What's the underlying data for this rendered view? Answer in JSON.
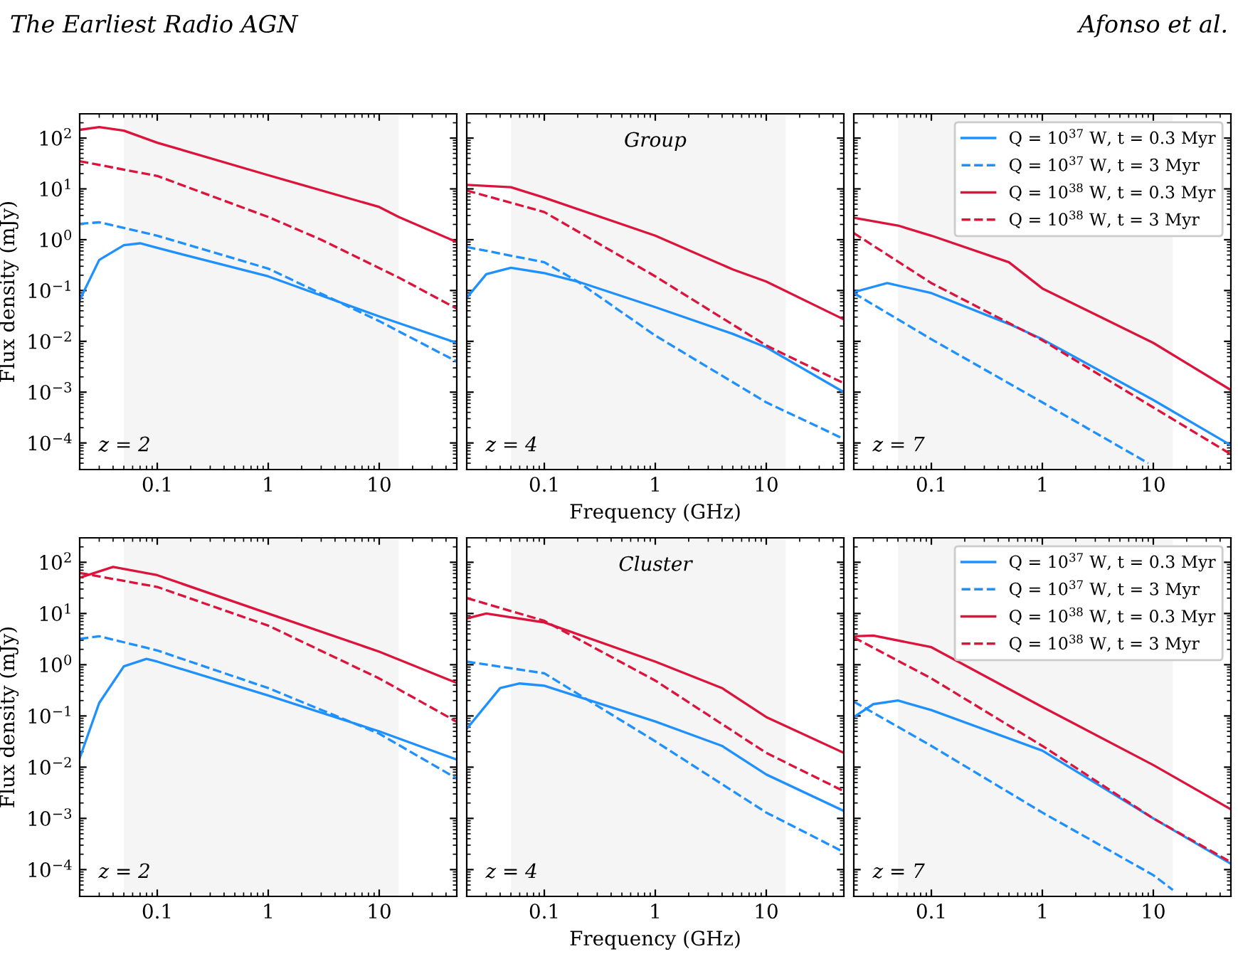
{
  "chart_data": [
    {
      "type": "line",
      "ylabel": "Flux density (mJy)",
      "annotations": [
        "z = 2",
        "The Earliest Radio AGN",
        "Afonso et al."
      ],
      "log": "xy",
      "grid": false,
      "tick_labels": true,
      "xlim": [
        0.02,
        50
      ],
      "ylim": [
        3e-05,
        300
      ],
      "xticks": [
        0.1,
        1,
        10
      ],
      "yticks": [
        {
          "value": 0.0001,
          "label": "10$^{−4}$"
        },
        {
          "value": 0.001,
          "label": "10$^{−3}$"
        },
        {
          "value": 0.01,
          "label": "10$^{−2}$"
        },
        {
          "value": 0.1,
          "label": "10$^{−1}$"
        },
        {
          "value": 1,
          "label": "10$^{0}$"
        },
        {
          "value": 10,
          "label": "10$^{1}$"
        },
        {
          "value": 100,
          "label": "10$^{2}$"
        }
      ],
      "bands": [
        {
          "axis": "x",
          "from": 0.05,
          "to": 15,
          "color": "#f5f5f5"
        }
      ],
      "series": [
        {
          "color": "#1e90ff",
          "line_style": "solid",
          "x": [
            0.02,
            0.03,
            0.05,
            0.07,
            0.1,
            1,
            10,
            50
          ],
          "values": [
            0.065,
            0.4,
            0.78,
            0.85,
            0.69,
            0.19,
            0.031,
            0.0093
          ]
        },
        {
          "color": "#1e90ff",
          "line_style": "dashed",
          "x": [
            0.02,
            0.03,
            0.1,
            1,
            10,
            50
          ],
          "values": [
            2.05,
            2.2,
            1.2,
            0.27,
            0.025,
            0.004
          ]
        },
        {
          "color": "#dc143c",
          "line_style": "solid",
          "x": [
            0.02,
            0.03,
            0.05,
            0.1,
            1,
            10,
            15,
            50
          ],
          "values": [
            145,
            165,
            140,
            81,
            18.6,
            4.4,
            2.8,
            0.9
          ]
        },
        {
          "color": "#dc143c",
          "line_style": "dashed",
          "x": [
            0.02,
            0.1,
            1,
            3,
            15,
            50
          ],
          "values": [
            35,
            18,
            2.8,
            1.0,
            0.18,
            0.044
          ]
        }
      ]
    },
    {
      "type": "line",
      "title": "Group",
      "xlabel": "Frequency (GHz)",
      "annotations": [
        "z = 4"
      ],
      "log": "xy",
      "grid": false,
      "tick_labels": "x",
      "xlim": [
        0.02,
        50
      ],
      "ylim": [
        3e-05,
        300
      ],
      "xticks": [
        0.1,
        1,
        10
      ],
      "yticks": [
        {
          "value": 0.0001,
          "label": null
        },
        {
          "value": 0.001,
          "label": null
        },
        {
          "value": 0.01,
          "label": null
        },
        {
          "value": 0.1,
          "label": null
        },
        {
          "value": 1,
          "label": null
        },
        {
          "value": 10,
          "label": null
        },
        {
          "value": 100,
          "label": null
        }
      ],
      "bands": [
        {
          "axis": "x",
          "from": 0.05,
          "to": 15,
          "color": "#f5f5f5"
        }
      ],
      "series": [
        {
          "color": "#1e90ff",
          "line_style": "solid",
          "x": [
            0.02,
            0.03,
            0.05,
            0.1,
            0.2,
            1,
            5,
            10,
            50
          ],
          "values": [
            0.072,
            0.21,
            0.28,
            0.22,
            0.15,
            0.047,
            0.014,
            0.0076,
            0.001
          ]
        },
        {
          "color": "#1e90ff",
          "line_style": "dashed",
          "x": [
            0.02,
            0.1,
            0.2,
            1,
            10,
            50
          ],
          "values": [
            0.72,
            0.36,
            0.15,
            0.013,
            0.00063,
            0.00012
          ]
        },
        {
          "color": "#dc143c",
          "line_style": "solid",
          "x": [
            0.02,
            0.05,
            0.1,
            1,
            5,
            10,
            50
          ],
          "values": [
            12,
            10.8,
            6.7,
            1.2,
            0.26,
            0.15,
            0.027
          ]
        },
        {
          "color": "#dc143c",
          "line_style": "dashed",
          "x": [
            0.02,
            0.1,
            1,
            10,
            50
          ],
          "values": [
            9.3,
            3.5,
            0.19,
            0.0083,
            0.0015
          ]
        }
      ]
    },
    {
      "type": "line",
      "annotations": [
        "z = 7"
      ],
      "log": "xy",
      "grid": false,
      "tick_labels": "x",
      "legend": "top right",
      "xlim": [
        0.02,
        50
      ],
      "ylim": [
        3e-05,
        300
      ],
      "xticks": [
        0.1,
        1,
        10
      ],
      "yticks": [
        {
          "value": 0.0001,
          "label": null
        },
        {
          "value": 0.001,
          "label": null
        },
        {
          "value": 0.01,
          "label": null
        },
        {
          "value": 0.1,
          "label": null
        },
        {
          "value": 1,
          "label": null
        },
        {
          "value": 10,
          "label": null
        },
        {
          "value": 100,
          "label": null
        }
      ],
      "bands": [
        {
          "axis": "x",
          "from": 0.05,
          "to": 15,
          "color": "#f5f5f5"
        }
      ],
      "series": [
        {
          "name": "Q = 10$^{37}$ W, t = 0.3 Myr",
          "color": "#1e90ff",
          "line_style": "solid",
          "x": [
            0.02,
            0.04,
            0.1,
            0.5,
            1,
            10,
            50
          ],
          "values": [
            0.093,
            0.14,
            0.089,
            0.022,
            0.011,
            0.0007,
            9e-05
          ]
        },
        {
          "name": "Q = 10$^{37}$ W, t = 3 Myr",
          "color": "#1e90ff",
          "line_style": "dashed",
          "x": [
            0.02,
            0.1,
            1,
            9
          ],
          "values": [
            0.089,
            0.011,
            0.00063,
            4e-05
          ]
        },
        {
          "name": "Q = 10$^{38}$ W, t = 0.3 Myr",
          "color": "#dc143c",
          "line_style": "solid",
          "x": [
            0.02,
            0.05,
            0.1,
            0.5,
            1,
            10,
            50
          ],
          "values": [
            2.7,
            1.9,
            1.2,
            0.36,
            0.11,
            0.0093,
            0.0011
          ]
        },
        {
          "name": "Q = 10$^{38}$ W, t = 3 Myr",
          "color": "#dc143c",
          "line_style": "dashed",
          "x": [
            0.02,
            0.1,
            1,
            10,
            50
          ],
          "values": [
            1.35,
            0.14,
            0.0105,
            0.0005,
            6e-05
          ]
        }
      ]
    },
    {
      "type": "line",
      "ylabel": "Flux density (mJy)",
      "annotations": [
        "z = 2"
      ],
      "log": "xy",
      "grid": false,
      "tick_labels": true,
      "xlim": [
        0.02,
        50
      ],
      "ylim": [
        3e-05,
        300
      ],
      "xticks": [
        0.1,
        1,
        10
      ],
      "yticks": [
        {
          "value": 0.0001,
          "label": "10$^{−4}$"
        },
        {
          "value": 0.001,
          "label": "10$^{−3}$"
        },
        {
          "value": 0.01,
          "label": "10$^{−2}$"
        },
        {
          "value": 0.1,
          "label": "10$^{−1}$"
        },
        {
          "value": 1,
          "label": "10$^{0}$"
        },
        {
          "value": 10,
          "label": "10$^{1}$"
        },
        {
          "value": 100,
          "label": "10$^{2}$"
        }
      ],
      "bands": [
        {
          "axis": "x",
          "from": 0.05,
          "to": 15,
          "color": "#f5f5f5"
        }
      ],
      "series": [
        {
          "color": "#1e90ff",
          "line_style": "solid",
          "x": [
            0.02,
            0.03,
            0.05,
            0.08,
            0.1,
            1,
            10,
            50
          ],
          "values": [
            0.015,
            0.18,
            0.93,
            1.3,
            1.15,
            0.25,
            0.05,
            0.014
          ]
        },
        {
          "color": "#1e90ff",
          "line_style": "dashed",
          "x": [
            0.02,
            0.03,
            0.1,
            1,
            10,
            50
          ],
          "values": [
            3.2,
            3.6,
            1.9,
            0.35,
            0.045,
            0.006
          ]
        },
        {
          "color": "#dc143c",
          "line_style": "solid",
          "x": [
            0.02,
            0.04,
            0.1,
            1,
            10,
            50
          ],
          "values": [
            50,
            81,
            56,
            10,
            1.8,
            0.44
          ]
        },
        {
          "color": "#dc143c",
          "line_style": "dashed",
          "x": [
            0.02,
            0.1,
            1,
            10,
            50
          ],
          "values": [
            62,
            33,
            5.8,
            0.54,
            0.077
          ]
        }
      ]
    },
    {
      "type": "line",
      "title": "Cluster",
      "xlabel": "Frequency (GHz)",
      "annotations": [
        "z = 4"
      ],
      "log": "xy",
      "grid": false,
      "tick_labels": "x",
      "xlim": [
        0.02,
        50
      ],
      "ylim": [
        3e-05,
        300
      ],
      "xticks": [
        0.1,
        1,
        10
      ],
      "yticks": [
        {
          "value": 0.0001,
          "label": null
        },
        {
          "value": 0.001,
          "label": null
        },
        {
          "value": 0.01,
          "label": null
        },
        {
          "value": 0.1,
          "label": null
        },
        {
          "value": 1,
          "label": null
        },
        {
          "value": 10,
          "label": null
        },
        {
          "value": 100,
          "label": null
        }
      ],
      "bands": [
        {
          "axis": "x",
          "from": 0.05,
          "to": 15,
          "color": "#f5f5f5"
        }
      ],
      "series": [
        {
          "color": "#1e90ff",
          "line_style": "solid",
          "x": [
            0.02,
            0.04,
            0.06,
            0.1,
            1,
            4,
            10,
            50
          ],
          "values": [
            0.056,
            0.35,
            0.43,
            0.39,
            0.078,
            0.026,
            0.0072,
            0.0014
          ]
        },
        {
          "color": "#1e90ff",
          "line_style": "dashed",
          "x": [
            0.02,
            0.1,
            1,
            10,
            50
          ],
          "values": [
            1.15,
            0.68,
            0.032,
            0.0013,
            0.00022
          ]
        },
        {
          "color": "#dc143c",
          "line_style": "solid",
          "x": [
            0.02,
            0.03,
            0.1,
            1,
            4,
            10,
            50
          ],
          "values": [
            8,
            10,
            6.7,
            1.15,
            0.35,
            0.095,
            0.019
          ]
        },
        {
          "color": "#dc143c",
          "line_style": "dashed",
          "x": [
            0.02,
            0.1,
            1,
            10,
            50
          ],
          "values": [
            20,
            7.2,
            0.49,
            0.019,
            0.0034
          ]
        }
      ]
    },
    {
      "type": "line",
      "annotations": [
        "z = 7"
      ],
      "log": "xy",
      "grid": false,
      "tick_labels": "x",
      "legend": "top right",
      "xlim": [
        0.02,
        50
      ],
      "ylim": [
        3e-05,
        300
      ],
      "xticks": [
        0.1,
        1,
        10
      ],
      "yticks": [
        {
          "value": 0.0001,
          "label": null
        },
        {
          "value": 0.001,
          "label": null
        },
        {
          "value": 0.01,
          "label": null
        },
        {
          "value": 0.1,
          "label": null
        },
        {
          "value": 1,
          "label": null
        },
        {
          "value": 10,
          "label": null
        },
        {
          "value": 100,
          "label": null
        }
      ],
      "bands": [
        {
          "axis": "x",
          "from": 0.05,
          "to": 15,
          "color": "#f5f5f5"
        }
      ],
      "series": [
        {
          "name": "Q = 10$^{37}$ W, t = 0.3 Myr",
          "color": "#1e90ff",
          "line_style": "solid",
          "x": [
            0.02,
            0.03,
            0.05,
            0.1,
            1,
            10,
            50
          ],
          "values": [
            0.095,
            0.17,
            0.2,
            0.13,
            0.021,
            0.001,
            0.00013
          ]
        },
        {
          "name": "Q = 10$^{37}$ W, t = 3 Myr",
          "color": "#1e90ff",
          "line_style": "dashed",
          "x": [
            0.02,
            0.1,
            1,
            10,
            15
          ],
          "values": [
            0.19,
            0.026,
            0.0013,
            7.8e-05,
            4e-05
          ]
        },
        {
          "name": "Q = 10$^{38}$ W, t = 0.3 Myr",
          "color": "#dc143c",
          "line_style": "solid",
          "x": [
            0.02,
            0.03,
            0.1,
            1,
            10,
            50
          ],
          "values": [
            3.6,
            3.7,
            2.2,
            0.15,
            0.011,
            0.0015
          ]
        },
        {
          "name": "Q = 10$^{38}$ W, t = 3 Myr",
          "color": "#dc143c",
          "line_style": "dashed",
          "x": [
            0.02,
            0.1,
            1,
            10,
            50
          ],
          "values": [
            3.4,
            0.54,
            0.026,
            0.001,
            0.00014
          ]
        }
      ]
    }
  ]
}
